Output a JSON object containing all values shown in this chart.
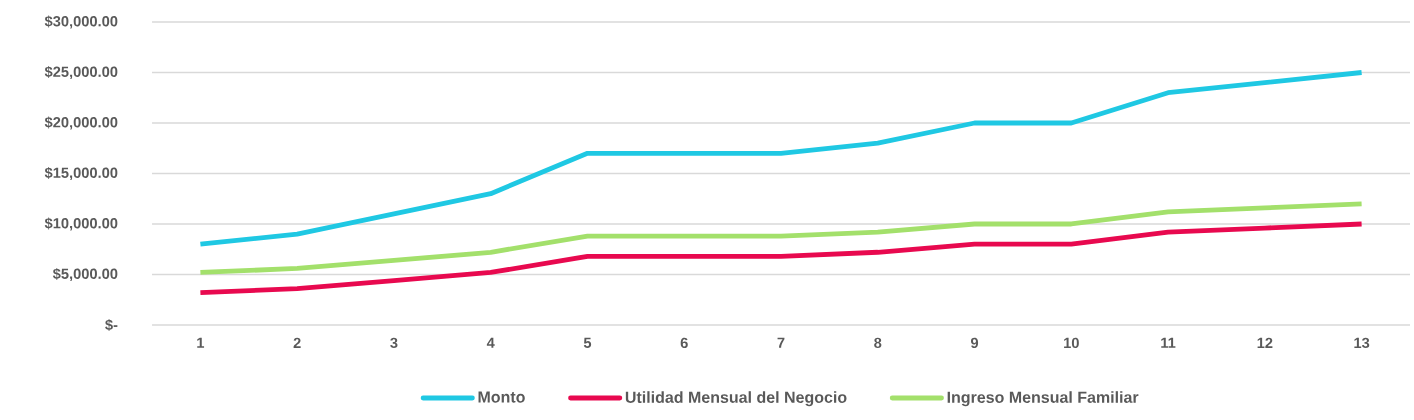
{
  "chart_data": {
    "type": "line",
    "categories": [
      "1",
      "2",
      "3",
      "4",
      "5",
      "6",
      "7",
      "8",
      "9",
      "10",
      "11",
      "12",
      "13"
    ],
    "series": [
      {
        "name": "Monto",
        "color": "#1fc8e3",
        "values": [
          8000,
          9000,
          11000,
          13000,
          17000,
          17000,
          17000,
          18000,
          20000,
          20000,
          23000,
          24000,
          25000
        ]
      },
      {
        "name": "Utilidad Mensual del Negocio",
        "color": "#e8094f",
        "values": [
          3200,
          3600,
          4400,
          5200,
          6800,
          6800,
          6800,
          7200,
          8000,
          8000,
          9200,
          9600,
          10000
        ]
      },
      {
        "name": "Ingreso Mensual Familiar",
        "color": "#a3e06b",
        "values": [
          5200,
          5600,
          6400,
          7200,
          8800,
          8800,
          8800,
          9200,
          10000,
          10000,
          11200,
          11600,
          12000
        ]
      }
    ],
    "ylim": [
      0,
      30000
    ],
    "yticks": [
      {
        "value": 0,
        "label": "$-"
      },
      {
        "value": 5000,
        "label": "$5,000.00"
      },
      {
        "value": 10000,
        "label": "$10,000.00"
      },
      {
        "value": 15000,
        "label": "$15,000.00"
      },
      {
        "value": 20000,
        "label": "$20,000.00"
      },
      {
        "value": 25000,
        "label": "$25,000.00"
      },
      {
        "value": 30000,
        "label": "$30,000.00"
      }
    ],
    "grid": "y",
    "legend": "bottom",
    "marker": "none",
    "line_style": "solid"
  }
}
